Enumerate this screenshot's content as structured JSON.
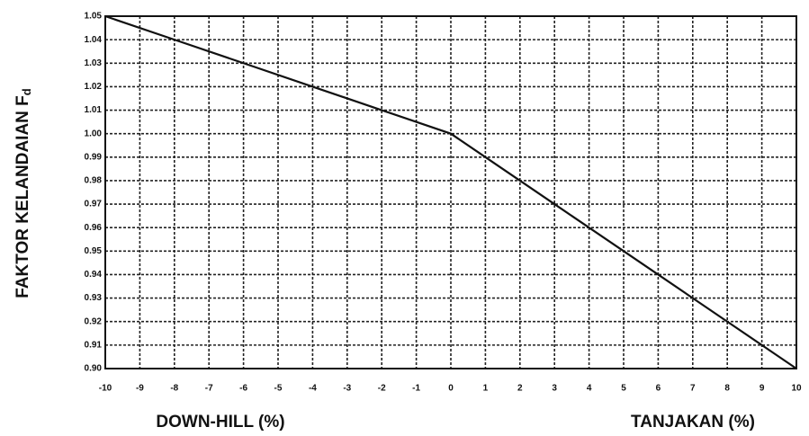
{
  "chart_data": {
    "type": "line",
    "ylabel": "FAKTOR KELANDAIAN F",
    "ylabel_sub": "d",
    "xlabel_left": "DOWN-HILL (%)",
    "xlabel_right": "TANJAKAN (%)",
    "series": [
      {
        "color": "#111111",
        "x": [
          -10,
          -8,
          -6,
          -4,
          -2,
          0,
          1,
          2,
          3,
          4,
          5,
          6,
          7,
          8,
          9,
          10
        ],
        "values": [
          1.05,
          1.04,
          1.03,
          1.02,
          1.01,
          1.0,
          0.99,
          0.98,
          0.97,
          0.96,
          0.95,
          0.94,
          0.93,
          0.92,
          0.91,
          0.9
        ]
      }
    ],
    "xlim": [
      -10,
      10
    ],
    "xticks": [
      -10,
      -9,
      -8,
      -7,
      -6,
      -5,
      -4,
      -3,
      -2,
      -1,
      0,
      1,
      2,
      3,
      4,
      5,
      6,
      7,
      8,
      9,
      10
    ],
    "ylim": [
      0.9,
      1.05
    ],
    "yticks": [
      {
        "value": 0.9,
        "label": "0.90"
      },
      0.91,
      0.92,
      0.93,
      0.94,
      0.95,
      0.96,
      0.97,
      0.98,
      0.99,
      {
        "value": 1,
        "label": "1.00"
      },
      1.01,
      1.02,
      1.03,
      1.04,
      1.05
    ],
    "grid": true
  }
}
